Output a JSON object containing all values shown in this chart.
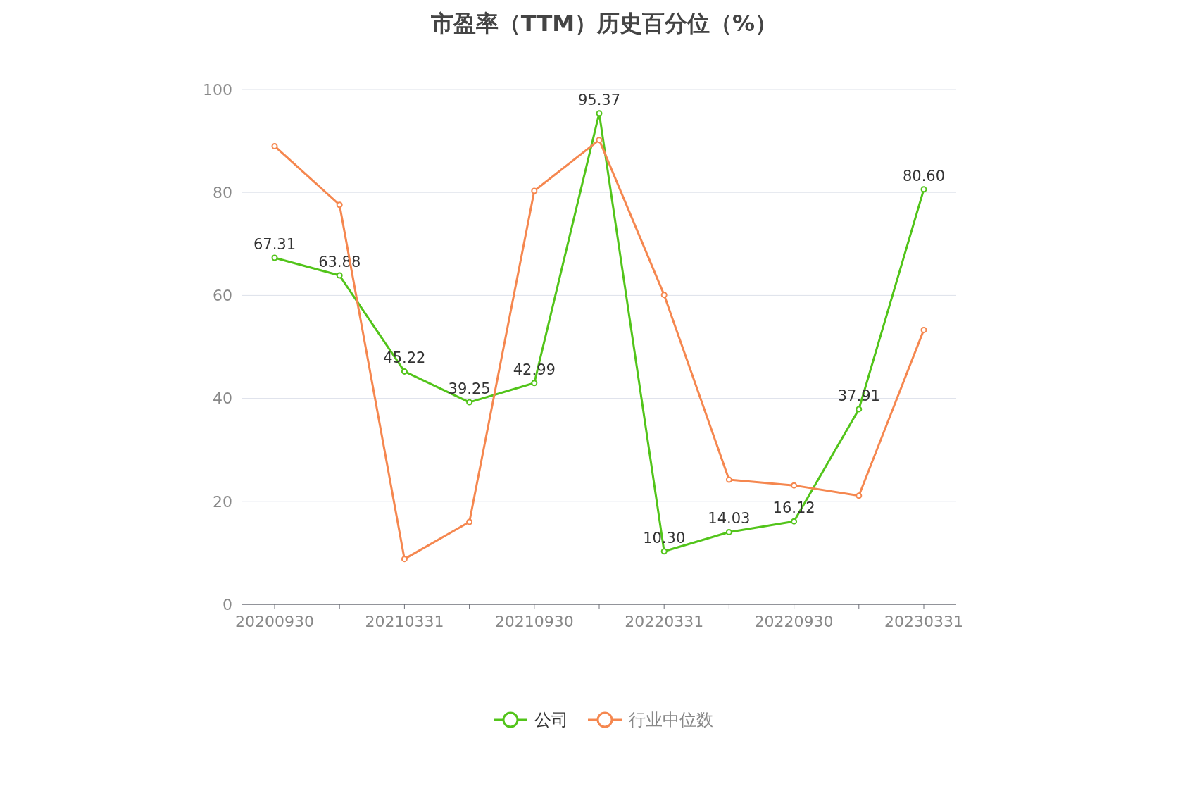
{
  "chart_data": {
    "type": "line",
    "title": "市盈率（TTM）历史百分位（%）",
    "categories": [
      "20200930",
      null,
      "20210331",
      null,
      "20210930",
      null,
      "20220331",
      null,
      "20220930",
      null,
      "20230331"
    ],
    "series": [
      {
        "name": "公司",
        "color": "#52c41a",
        "values": [
          67.31,
          63.88,
          45.22,
          39.25,
          42.99,
          95.37,
          10.3,
          14.03,
          16.12,
          37.91,
          80.6
        ],
        "value_labels": [
          "67.31",
          "63.88",
          "45.22",
          "39.25",
          "42.99",
          "95.37",
          "10.30",
          "14.03",
          "16.12",
          "37.91",
          "80.60"
        ]
      },
      {
        "name": "行业中位数",
        "color": "#f5874f",
        "values": [
          89.0,
          77.6,
          8.8,
          16.0,
          80.3,
          90.2,
          60.1,
          24.2,
          23.1,
          21.1,
          53.3
        ]
      }
    ],
    "ylim": [
      0,
      100
    ],
    "yticks": [
      0,
      20,
      40,
      60,
      80,
      100
    ],
    "grid": "y",
    "legend": "bottom",
    "marker": "circle"
  }
}
